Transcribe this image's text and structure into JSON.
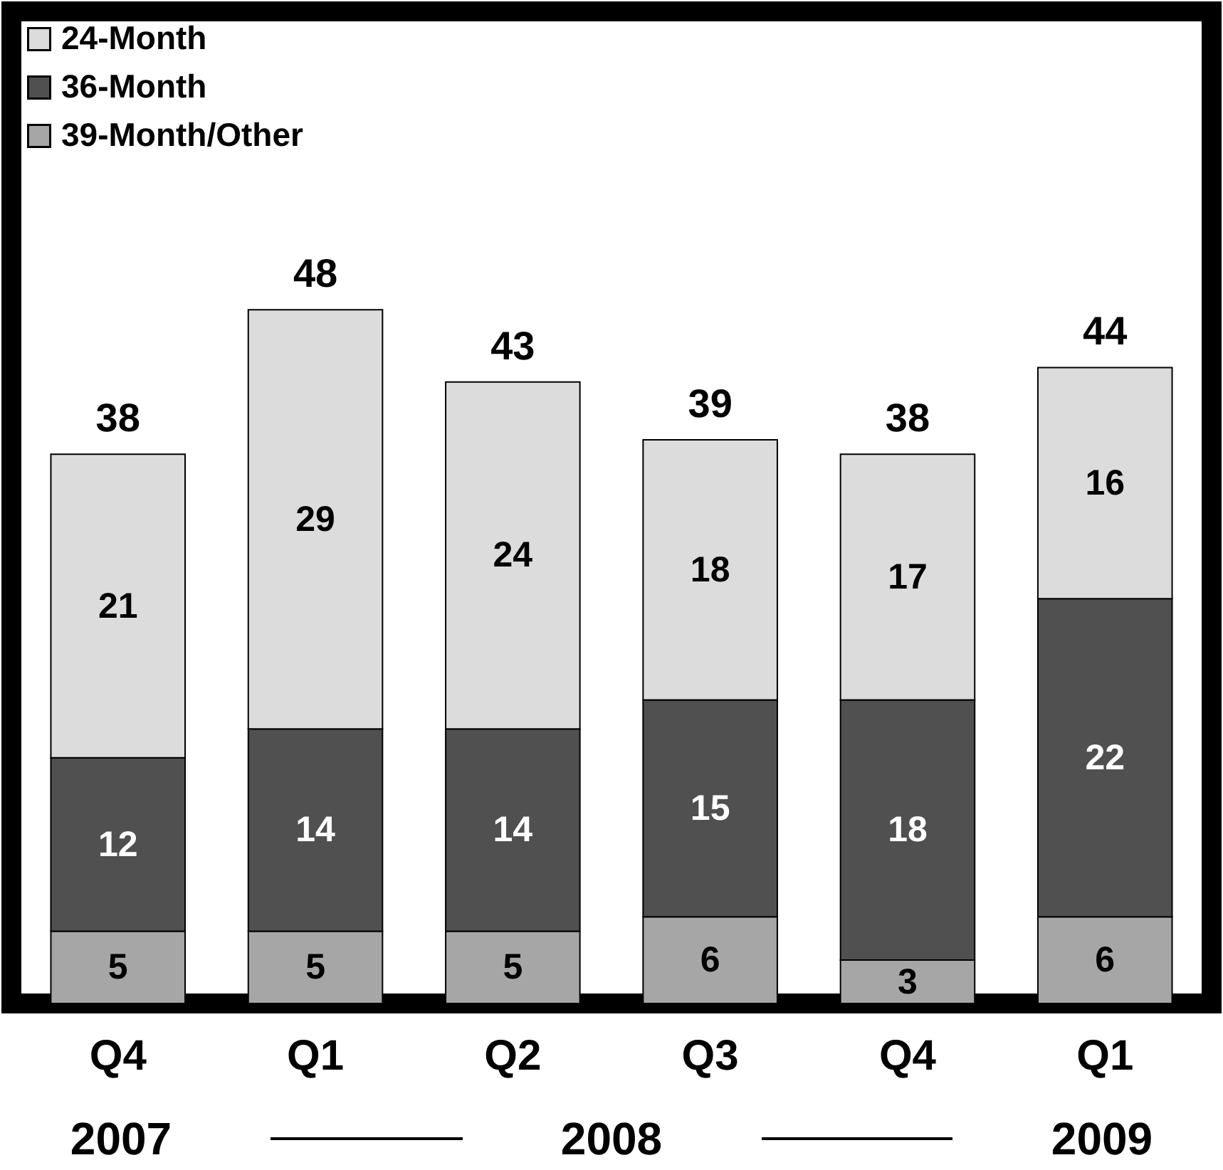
{
  "chart_data": {
    "type": "bar",
    "stacked": true,
    "categories": [
      "Q4",
      "Q1",
      "Q2",
      "Q3",
      "Q4",
      "Q1"
    ],
    "series": [
      {
        "name": "39-Month/Other",
        "color": "#a6a6a6",
        "values": [
          5,
          5,
          5,
          6,
          3,
          6
        ]
      },
      {
        "name": "36-Month",
        "color": "#505050",
        "values": [
          12,
          14,
          14,
          15,
          18,
          22
        ]
      },
      {
        "name": "24-Month",
        "color": "#dcdcdc",
        "values": [
          21,
          29,
          24,
          18,
          17,
          16
        ]
      }
    ],
    "data_labels": true,
    "totals": [
      "38",
      "48",
      "43",
      "39",
      "38",
      "44"
    ],
    "legend": "top left",
    "annotations": [
      "2007",
      "2008",
      "2009"
    ]
  }
}
